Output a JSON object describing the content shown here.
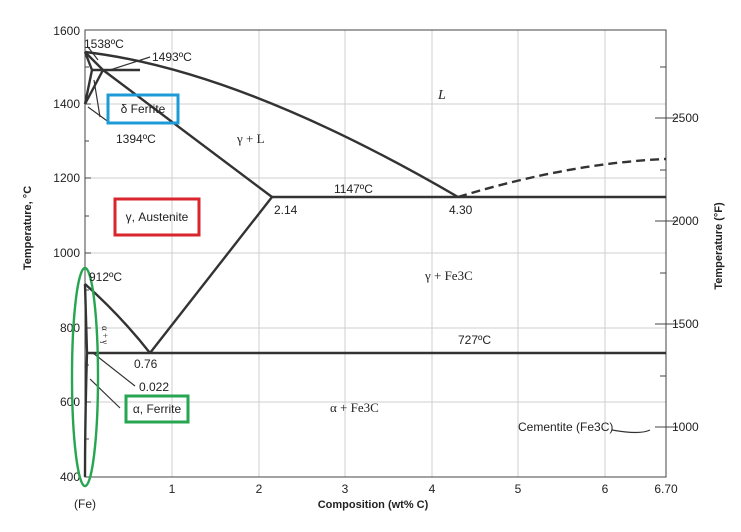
{
  "diagram": {
    "axes": {
      "x_title": "Composition (wt% C)",
      "y_left_title": "Temperature, °C",
      "y_right_title": "Temperature (°F)",
      "x_ticks": [
        "(Fe)",
        "1",
        "2",
        "3",
        "4",
        "5",
        "6",
        "6.70"
      ],
      "y_left_ticks": [
        "400",
        "600",
        "800",
        "1000",
        "1200",
        "1400",
        "1600"
      ],
      "y_right_ticks": [
        "1000",
        "1500",
        "2000",
        "2500"
      ]
    },
    "annotations": {
      "t1538": "1538ºC",
      "t1493": "1493ºC",
      "t1394": "1394ºC",
      "t1147": "1147ºC",
      "t912": "912ºC",
      "t727": "727ºC",
      "c214": "2.14",
      "c430": "4.30",
      "c076": "0.76",
      "c0022": "0.022",
      "cementite": "Cementite (Fe3C)"
    },
    "phases": {
      "liquid": "L",
      "gamma_liquid": "γ + L",
      "gamma_fe3c": "γ + Fe3C",
      "alpha_fe3c": "α + Fe3C",
      "alpha_gamma": "α + γ"
    },
    "highlighted_phases": {
      "delta": {
        "label": "δ Ferrite",
        "color": "#1e9bd7"
      },
      "gamma": {
        "label": "γ, Austenite",
        "color": "#d9262e"
      },
      "alpha": {
        "label": "α, Ferrite",
        "color": "#27a550"
      }
    },
    "alpha_region_outline_color": "#27a550"
  }
}
